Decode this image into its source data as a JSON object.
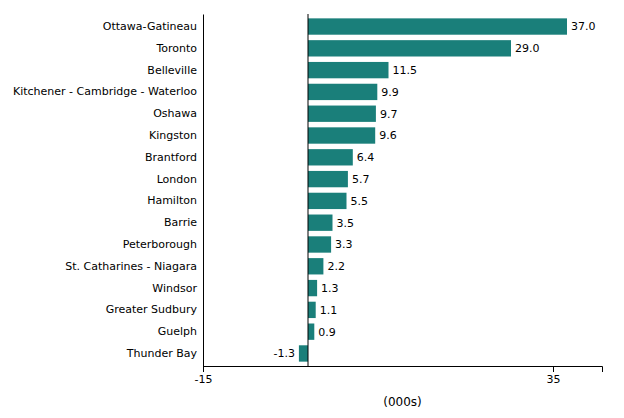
{
  "chart_data": {
    "type": "bar",
    "orientation": "horizontal",
    "categories": [
      "Thunder Bay",
      "Guelph",
      "Greater Sudbury",
      "Windsor",
      "St. Catharines - Niagara",
      "Peterborough",
      "Barrie",
      "Hamilton",
      "London",
      "Brantford",
      "Kingston",
      "Oshawa",
      "Kitchener - Cambridge - Waterloo",
      "Belleville",
      "Toronto",
      "Ottawa-Gatineau"
    ],
    "values": [
      -1.3,
      0.9,
      1.1,
      1.3,
      2.2,
      3.3,
      3.5,
      5.5,
      5.7,
      6.4,
      9.6,
      9.7,
      9.9,
      11.5,
      29.0,
      37.0
    ],
    "value_labels": [
      "-1.3",
      "0.9",
      "1.1",
      "1.3",
      "2.2",
      "3.3",
      "3.5",
      "5.5",
      "5.7",
      "6.4",
      "9.6",
      "9.7",
      "9.9",
      "11.5",
      "29.0",
      "37.0"
    ],
    "color": "#1a7f7a",
    "xlabel": "(000s)",
    "xlim": [
      -15,
      42
    ],
    "xticks": [
      -15,
      35
    ],
    "grid": false,
    "data_labels": true
  }
}
